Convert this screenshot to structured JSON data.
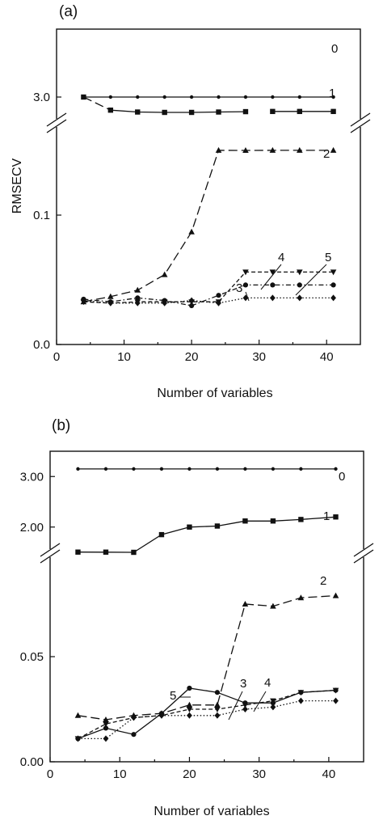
{
  "chart_data": [
    {
      "panel": "(a)",
      "type": "line",
      "xlabel": "Number of variables",
      "ylabel": "RMSECV",
      "xlim": [
        0,
        45
      ],
      "x_ticks": [
        "0",
        "10",
        "20",
        "30",
        "40"
      ],
      "y_tick_labels": [
        "0.0",
        "0.1",
        "3.0"
      ],
      "y_axis_break": "between 0.15 and 3.0",
      "grid": false,
      "legend": "series numbers labelled on the plot",
      "series": [
        {
          "name": "0",
          "label": "0",
          "marker": "dot",
          "dash": "solid",
          "x": [
            4,
            8,
            12,
            16,
            20,
            24,
            28,
            32,
            36,
            41
          ],
          "y": [
            3.0,
            3.0,
            3.0,
            3.0,
            3.0,
            3.0,
            3.0,
            3.0,
            3.0,
            3.0
          ]
        },
        {
          "name": "1",
          "label": "1",
          "marker": "square",
          "dash": "long-dash then solid",
          "x": [
            4,
            8,
            12,
            16,
            20,
            24,
            28,
            32,
            36,
            41
          ],
          "y": [
            3.0,
            2.3,
            2.2,
            2.18,
            2.18,
            2.2,
            2.22,
            2.23,
            2.23,
            2.23
          ]
        },
        {
          "name": "2",
          "label": "2",
          "marker": "triangle-up",
          "dash": "long-dash",
          "x": [
            4,
            8,
            12,
            16,
            20,
            24,
            28,
            32,
            36,
            41
          ],
          "y": [
            0.033,
            0.037,
            0.042,
            0.054,
            0.087,
            0.156,
            0.151,
            0.154,
            0.154,
            0.154
          ]
        },
        {
          "name": "3",
          "label": "3",
          "marker": "circle",
          "dash": "dash-dot",
          "x": [
            4,
            8,
            12,
            16,
            20,
            24,
            28,
            32,
            36,
            41
          ],
          "y": [
            0.035,
            0.033,
            0.036,
            0.034,
            0.03,
            0.038,
            0.046,
            0.046,
            0.046,
            0.046
          ]
        },
        {
          "name": "4",
          "label": "4",
          "marker": "triangle-down",
          "dash": "dash",
          "x": [
            4,
            8,
            12,
            16,
            20,
            24,
            28,
            32,
            36,
            41
          ],
          "y": [
            0.033,
            0.032,
            0.033,
            0.033,
            0.033,
            0.033,
            0.056,
            0.056,
            0.056,
            0.056
          ]
        },
        {
          "name": "5",
          "label": "5",
          "marker": "diamond",
          "dash": "dot",
          "x": [
            4,
            8,
            12,
            16,
            20,
            24,
            28,
            32,
            36,
            41
          ],
          "y": [
            0.034,
            0.032,
            0.032,
            0.032,
            0.034,
            0.032,
            0.036,
            0.036,
            0.036,
            0.036
          ]
        }
      ]
    },
    {
      "panel": "(b)",
      "type": "line",
      "xlabel": "Number of variables",
      "ylabel": "",
      "xlim": [
        0,
        45
      ],
      "x_ticks": [
        "0",
        "10",
        "20",
        "30",
        "40"
      ],
      "y_tick_labels": [
        "0.00",
        "0.05",
        "2.00",
        "3.00"
      ],
      "y_axis_break": "between 0.1 and 1.5",
      "grid": false,
      "legend": "series numbers labelled on the plot",
      "series": [
        {
          "name": "0",
          "label": "0",
          "marker": "dot",
          "dash": "solid",
          "x": [
            4,
            8,
            12,
            16,
            20,
            24,
            28,
            32,
            36,
            41
          ],
          "y": [
            3.15,
            3.15,
            3.15,
            3.15,
            3.15,
            3.15,
            3.15,
            3.15,
            3.15,
            3.15
          ]
        },
        {
          "name": "1",
          "label": "1",
          "marker": "square",
          "dash": "solid",
          "x": [
            4,
            8,
            12,
            16,
            20,
            24,
            28,
            32,
            36,
            41
          ],
          "y": [
            1.1,
            1.15,
            1.5,
            1.85,
            2.0,
            2.02,
            2.12,
            2.12,
            2.15,
            2.2
          ]
        },
        {
          "name": "2",
          "label": "2",
          "marker": "triangle-up",
          "dash": "long-dash",
          "x": [
            4,
            8,
            12,
            16,
            20,
            24,
            28,
            32,
            36,
            41
          ],
          "y": [
            0.022,
            0.02,
            0.022,
            0.023,
            0.027,
            0.027,
            0.075,
            0.074,
            0.078,
            0.079
          ]
        },
        {
          "name": "3",
          "label": "3",
          "marker": "circle",
          "dash": "solid",
          "x": [
            4,
            8,
            12,
            16,
            20,
            24,
            28,
            32,
            36,
            41
          ],
          "y": [
            0.011,
            0.016,
            0.013,
            0.023,
            0.035,
            0.033,
            0.028,
            0.028,
            0.033,
            0.034
          ]
        },
        {
          "name": "4",
          "label": "4",
          "marker": "triangle-down",
          "dash": "dash",
          "x": [
            4,
            8,
            12,
            16,
            20,
            24,
            28,
            32,
            36,
            41
          ],
          "y": [
            0.011,
            0.018,
            0.021,
            0.022,
            0.025,
            0.025,
            0.027,
            0.029,
            0.033,
            0.034
          ]
        },
        {
          "name": "5",
          "label": "5",
          "marker": "diamond",
          "dash": "dot",
          "x": [
            4,
            8,
            12,
            16,
            20,
            24,
            28,
            32,
            36,
            41
          ],
          "y": [
            0.011,
            0.011,
            0.021,
            0.022,
            0.022,
            0.022,
            0.025,
            0.026,
            0.029,
            0.029
          ]
        }
      ]
    }
  ]
}
